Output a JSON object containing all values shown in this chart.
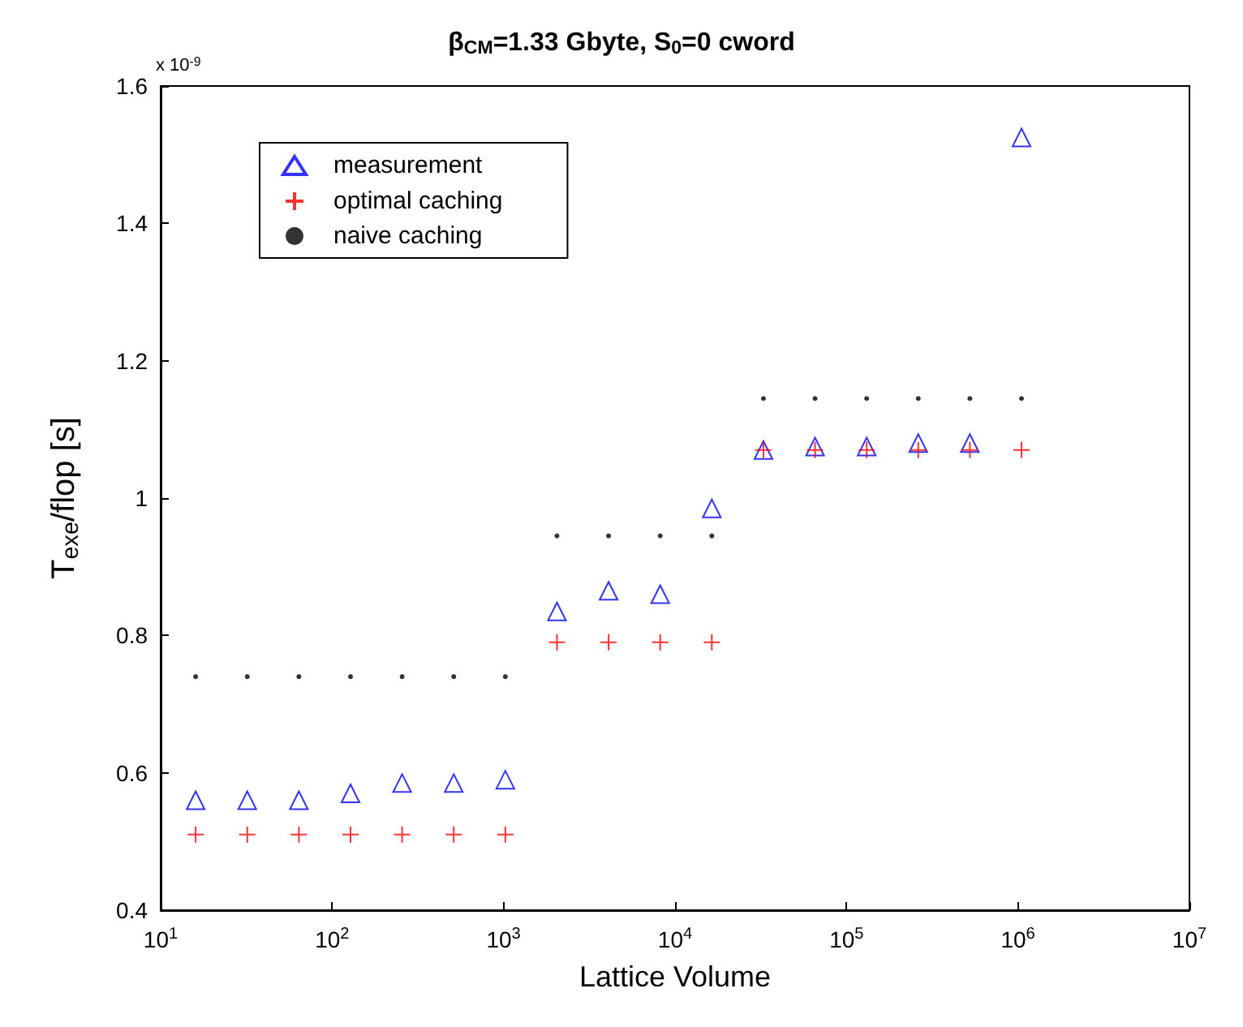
{
  "chart_data": {
    "type": "scatter",
    "title": "β$_{CM}$=1.33 Gbyte, S$_{0}$=0 cword",
    "xlabel": "Lattice Volume",
    "ylabel": "T$_{exe}$/flop [s]",
    "annotations": [
      "x 10$^{-9}$"
    ],
    "x": [
      16,
      32,
      64,
      128,
      256,
      512,
      1024,
      2048,
      4096,
      8192,
      16384,
      32768,
      65536,
      131072,
      262144,
      524288,
      1048576
    ],
    "series": [
      {
        "name": "measurement",
        "color": "#0000ff",
        "marker": "triangle",
        "values": [
          0.56,
          0.56,
          0.56,
          0.57,
          0.585,
          0.585,
          0.59,
          0.835,
          0.865,
          0.86,
          0.985,
          1.07,
          1.075,
          1.075,
          1.08,
          1.08,
          1.525
        ]
      },
      {
        "name": "optimal caching",
        "color": "#ff0000",
        "marker": "cross",
        "values": [
          0.51,
          0.51,
          0.51,
          0.51,
          0.51,
          0.51,
          0.51,
          0.79,
          0.79,
          0.79,
          0.79,
          1.07,
          1.07,
          1.07,
          1.07,
          1.07,
          1.07
        ]
      },
      {
        "name": "naive caching",
        "color": "#000000",
        "marker": "circle",
        "values": [
          0.74,
          0.74,
          0.74,
          0.74,
          0.74,
          0.74,
          0.74,
          0.945,
          0.945,
          0.945,
          0.945,
          1.145,
          1.145,
          1.145,
          1.145,
          1.145,
          1.145
        ]
      }
    ],
    "log": "x",
    "xlim": [
      10,
      10000000
    ],
    "xticks": [
      {
        "value": 10,
        "label": "10$^{1}$"
      },
      {
        "value": 100,
        "label": "10$^{2}$"
      },
      {
        "value": 1000,
        "label": "10$^{3}$"
      },
      {
        "value": 10000,
        "label": "10$^{4}$"
      },
      {
        "value": 100000,
        "label": "10$^{5}$"
      },
      {
        "value": 1000000,
        "label": "10$^{6}$"
      },
      {
        "value": 10000000,
        "label": "10$^{7}$"
      }
    ],
    "ylim": [
      0.4,
      1.6
    ],
    "yticks": [
      0.4,
      0.6,
      0.8,
      1,
      1.2,
      1.4,
      1.6
    ],
    "grid": false,
    "legend": "top left"
  }
}
